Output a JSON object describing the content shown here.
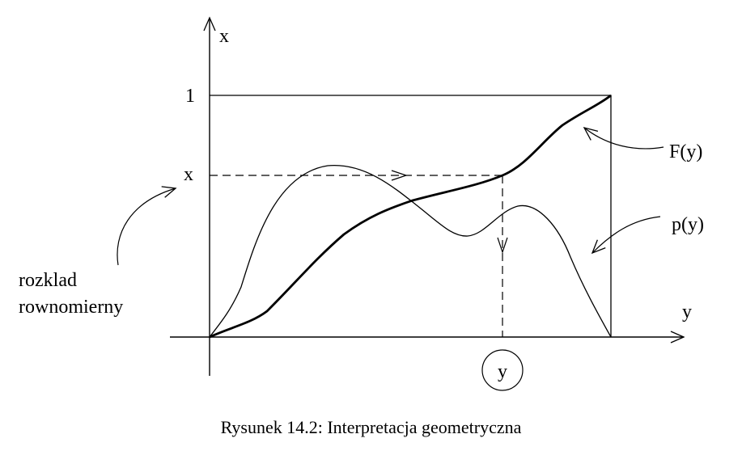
{
  "axes": {
    "vertical_label": "x",
    "horizontal_label": "y"
  },
  "ticks": {
    "y_top": "1",
    "y_mark": "x",
    "x_mark": "y"
  },
  "curves": {
    "cdf_label": "F(y)",
    "pdf_label": "p(y)"
  },
  "annotation": {
    "line1": "rozklad",
    "line2": "rownomierny"
  },
  "caption": "Rysunek 14.2: Interpretacja geometryczna"
}
